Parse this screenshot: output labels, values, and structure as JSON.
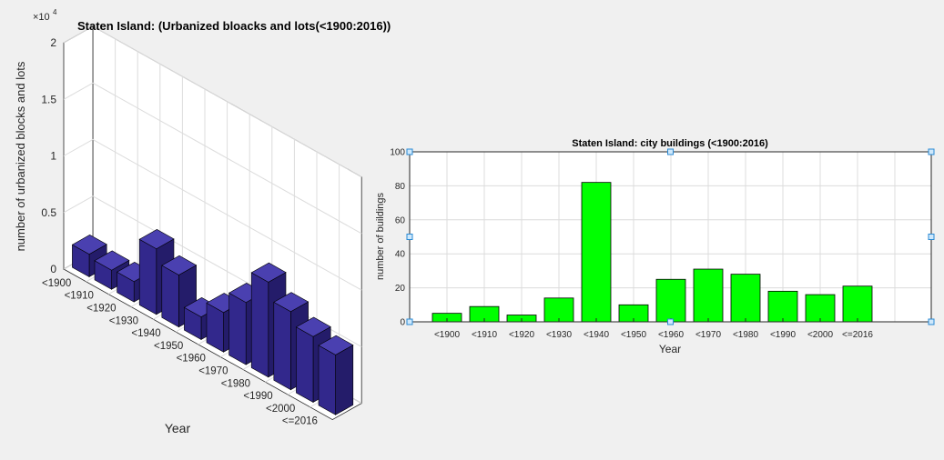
{
  "figure": {
    "background": "#f0f0f0"
  },
  "chart_data": [
    {
      "type": "bar",
      "projection": "3d",
      "title": "Staten Island: (Urbanized bloacks and lots(<1900:2016))",
      "xlabel": "Year",
      "ylabel": "number of urbanized blocks and lots",
      "exponent_label": "×10",
      "exponent_power": "4",
      "categories": [
        "<1900",
        "<1910",
        "<1920",
        "<1930",
        "<1940",
        "<1950",
        "<1960",
        "<1970",
        "<1980",
        "<1990",
        "<2000",
        "<=2016"
      ],
      "values": [
        2000,
        1700,
        1800,
        5800,
        4600,
        2000,
        3500,
        5500,
        8400,
        6900,
        5800,
        5300
      ],
      "ylim": [
        0,
        20000
      ],
      "yticks": [
        0,
        0.5,
        1,
        1.5,
        2
      ],
      "bar_color": "#32288c",
      "grid": true
    },
    {
      "type": "bar",
      "title": "Staten Island: city buildings (<1900:2016)",
      "xlabel": "Year",
      "ylabel": "number of buildings",
      "categories": [
        "<1900",
        "<1910",
        "<1920",
        "<1930",
        "<1940",
        "<1950",
        "<1960",
        "<1970",
        "<1980",
        "<1990",
        "<2000",
        "<=2016"
      ],
      "values": [
        5,
        9,
        4,
        14,
        82,
        10,
        25,
        31,
        28,
        18,
        16,
        21
      ],
      "ylim": [
        0,
        100
      ],
      "yticks": [
        0,
        20,
        40,
        60,
        80,
        100
      ],
      "bar_color": "#00ff00",
      "grid": true
    }
  ]
}
